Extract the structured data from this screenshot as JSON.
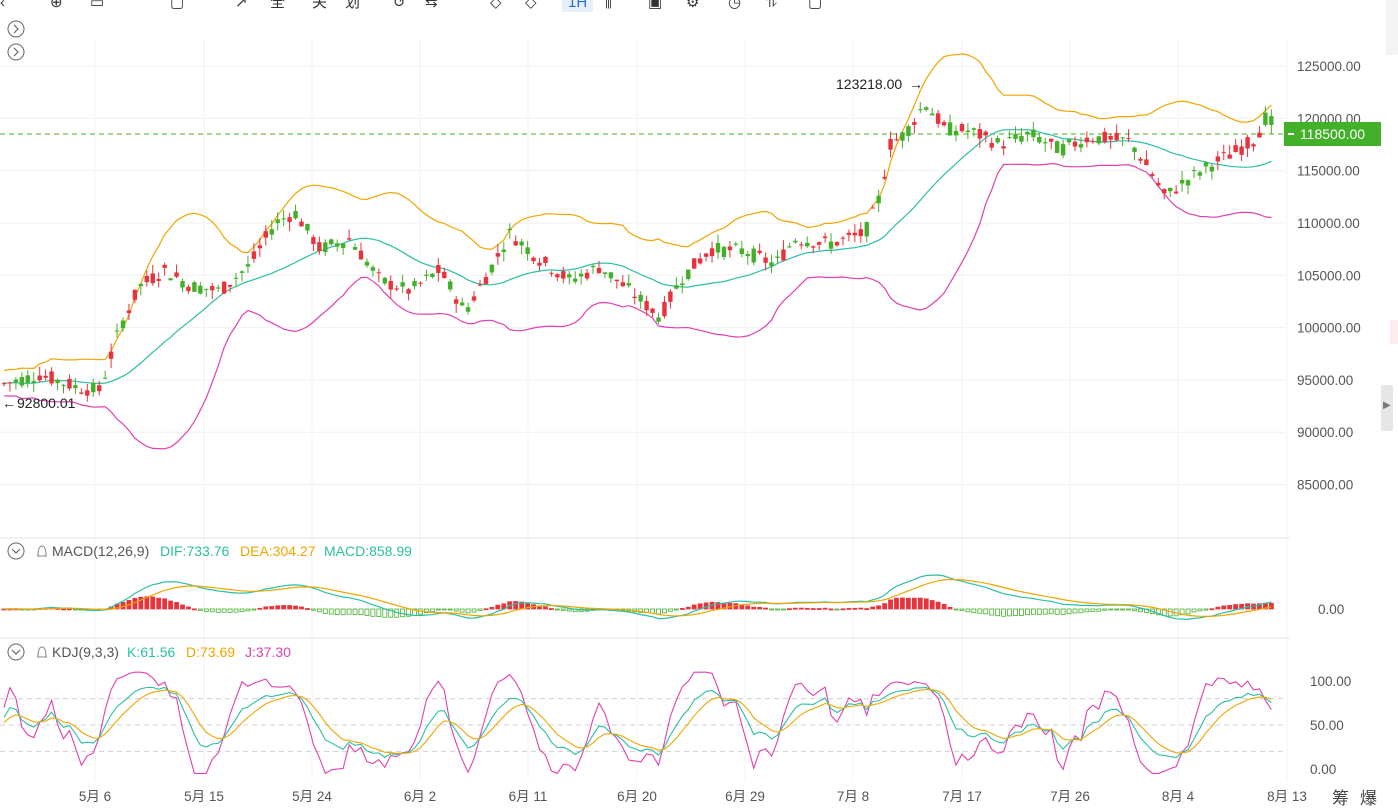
{
  "toolbar": {
    "items": [
      {
        "name": "back-icon",
        "label": "‹"
      },
      {
        "name": "crosshair-tool-icon",
        "label": "⊕"
      },
      {
        "name": "line-tool-icon",
        "label": "▭"
      },
      {
        "name": "shape-tool-icon",
        "label": "▢"
      },
      {
        "name": "text-tool-icon",
        "label": "↗"
      },
      {
        "name": "indicator-a-icon",
        "label": "全"
      },
      {
        "name": "indicator-b-icon",
        "label": "关"
      },
      {
        "name": "indicator-c-icon",
        "label": "划"
      },
      {
        "name": "undo-icon",
        "label": "↺"
      },
      {
        "name": "redo-icon",
        "label": "⇆"
      },
      {
        "name": "ruler-icon",
        "label": "◇"
      },
      {
        "name": "diamond-icon",
        "label": "◇"
      },
      {
        "name": "interval-selector",
        "label": "1H",
        "active": true
      },
      {
        "name": "candles-icon",
        "label": "⫼"
      },
      {
        "name": "layout-icon",
        "label": "▣"
      },
      {
        "name": "settings-icon",
        "label": "⚙"
      },
      {
        "name": "clock-icon",
        "label": "◷"
      },
      {
        "name": "compare-icon",
        "label": "⥮"
      },
      {
        "name": "camera-icon",
        "label": "▢"
      }
    ]
  },
  "main": {
    "high_marker": "123218.00",
    "low_marker": "92800.01",
    "current_price": "118500.00",
    "price_axis": [
      "125000.00",
      "120000.00",
      "115000.00",
      "110000.00",
      "105000.00",
      "100000.00",
      "95000.00",
      "90000.00",
      "85000.00"
    ]
  },
  "macd": {
    "name": "MACD(12,26,9)",
    "dif": "DIF:733.76",
    "dea": "DEA:304.27",
    "macd": "MACD:858.99",
    "axis": [
      "0.00"
    ]
  },
  "kdj": {
    "name": "KDJ(9,3,3)",
    "k": "K:61.56",
    "d": "D:73.69",
    "j": "J:37.30",
    "axis": [
      "100.00",
      "50.00",
      "0.00"
    ]
  },
  "x_axis": [
    "5月 6",
    "5月 15",
    "5月 24",
    "6月 2",
    "6月 11",
    "6月 20",
    "6月 29",
    "7月 8",
    "7月 17",
    "7月 26",
    "8月 4",
    "8月 13"
  ],
  "bottom_buttons": [
    "筹",
    "爆"
  ],
  "colors": {
    "up": "#e8323c",
    "down": "#43b02a",
    "boll_upper": "#f0a500",
    "boll_mid": "#2bbfa4",
    "boll_lower": "#e040b0",
    "dif": "#2bbfa4",
    "dea": "#f0a500",
    "k": "#2bbfa4",
    "d": "#f0a500",
    "j": "#e040b0",
    "price_line": "#6cc24a"
  }
}
